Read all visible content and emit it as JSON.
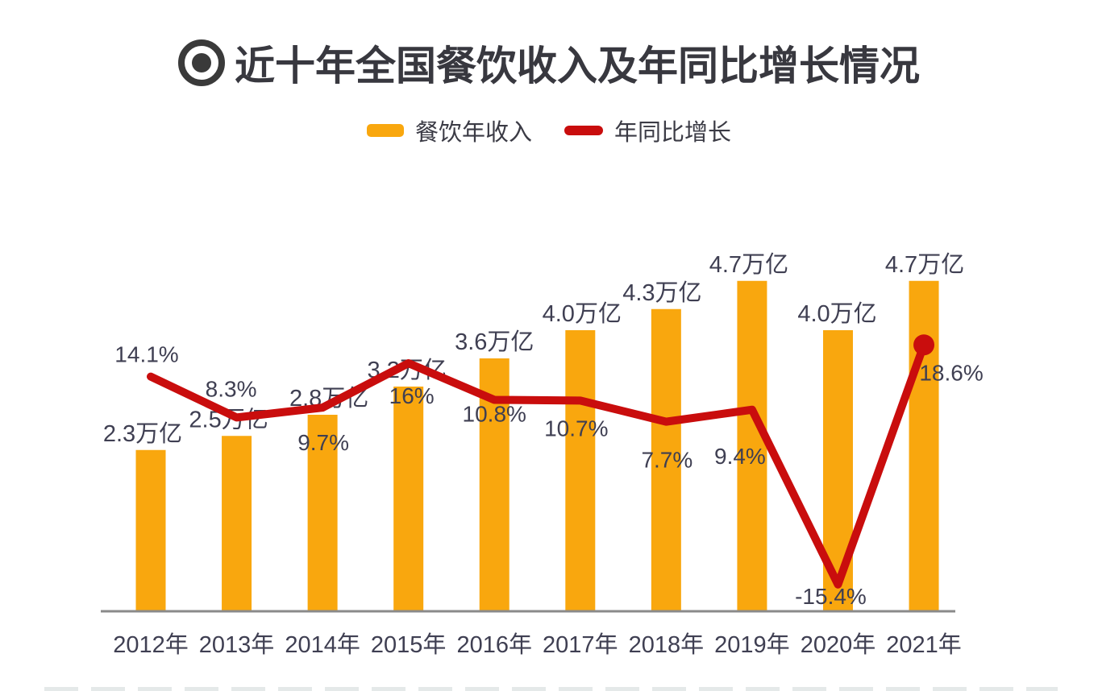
{
  "header": {
    "icon": "bullseye-icon",
    "title": "近十年全国餐饮收入及年同比增长情况"
  },
  "legend": {
    "items": [
      {
        "label": "餐饮年收入",
        "swatch": "bar-swatch",
        "color": "#f9a70e"
      },
      {
        "label": "年同比增长",
        "swatch": "line-swatch",
        "color": "#c90d0d"
      }
    ]
  },
  "colors": {
    "bar": "#f9a70e",
    "line": "#c90d0d",
    "text": "#3f3f52",
    "axis": "#8a8a8a",
    "title_text": "#38383f"
  },
  "chart_data": {
    "type": "bar",
    "subtype": "bar+line combo",
    "title": "近十年全国餐饮收入及年同比增长情况",
    "categories": [
      "2012年",
      "2013年",
      "2014年",
      "2015年",
      "2016年",
      "2017年",
      "2018年",
      "2019年",
      "2020年",
      "2021年"
    ],
    "series": [
      {
        "name": "餐饮年收入",
        "type": "bar",
        "unit": "万亿",
        "values": [
          2.3,
          2.5,
          2.8,
          3.2,
          3.6,
          4.0,
          4.3,
          4.7,
          4.0,
          4.7
        ],
        "labels": [
          "2.3万亿",
          "2.5万亿",
          "2.8万亿",
          "3.2万亿",
          "3.6万亿",
          "4.0万亿",
          "4.3万亿",
          "4.7万亿",
          "4.0万亿",
          "4.7万亿"
        ],
        "color": "#f9a70e",
        "ylim": [
          0,
          5.2
        ]
      },
      {
        "name": "年同比增长",
        "type": "line",
        "unit": "%",
        "values": [
          14.1,
          8.3,
          9.7,
          16,
          10.8,
          10.7,
          7.7,
          9.4,
          -15.4,
          18.6
        ],
        "labels": [
          "14.1%",
          "8.3%",
          "9.7%",
          "16%",
          "10.8%",
          "10.7%",
          "7.7%",
          "9.4%",
          "-15.4%",
          "18.6%"
        ],
        "color": "#c90d0d",
        "marker_on_last_point": true,
        "ylim": [
          -20,
          20
        ]
      }
    ],
    "xlabel": "",
    "ylabel": "",
    "grid": false,
    "legend_position": "top",
    "value_labels_shown": true
  }
}
